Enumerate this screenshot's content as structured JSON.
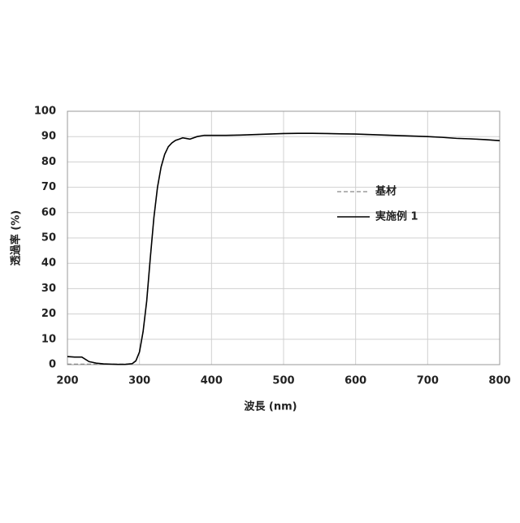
{
  "chart_data": {
    "type": "line",
    "x_label": "波長 (nm)",
    "y_label": "透過率 (%)",
    "x": [
      200,
      210,
      220,
      230,
      240,
      250,
      260,
      270,
      280,
      290,
      295,
      300,
      305,
      310,
      315,
      320,
      325,
      330,
      335,
      340,
      345,
      350,
      355,
      360,
      370,
      380,
      390,
      400,
      420,
      440,
      460,
      480,
      500,
      520,
      540,
      560,
      580,
      600,
      620,
      640,
      660,
      680,
      700,
      720,
      740,
      760,
      780,
      800
    ],
    "series": [
      {
        "name": "基材",
        "color": "#888888",
        "dash": true,
        "values": [
          0.2,
          0.2,
          0.2,
          0.2,
          0.2,
          0.2,
          0.2,
          0.2,
          0.2,
          0.4,
          1.5,
          5,
          13,
          25,
          42,
          58,
          70,
          78,
          83,
          86,
          87.5,
          88.5,
          89,
          89.5,
          89,
          90,
          90.5,
          90.5,
          90.5,
          90.6,
          90.8,
          91,
          91.2,
          91.3,
          91.3,
          91.2,
          91.1,
          91,
          90.8,
          90.6,
          90.4,
          90.2,
          90,
          89.7,
          89.3,
          89.1,
          88.8,
          88.4
        ]
      },
      {
        "name": "実施例 1",
        "color": "#000000",
        "dash": false,
        "values": [
          3.2,
          3.0,
          3.0,
          1.2,
          0.6,
          0.3,
          0.2,
          0.1,
          0.1,
          0.4,
          1.5,
          5,
          13,
          25,
          42,
          58,
          70,
          78,
          83,
          86,
          87.5,
          88.5,
          89,
          89.5,
          89,
          90,
          90.5,
          90.5,
          90.5,
          90.6,
          90.8,
          91,
          91.2,
          91.3,
          91.3,
          91.2,
          91.1,
          91,
          90.8,
          90.6,
          90.4,
          90.2,
          90,
          89.7,
          89.3,
          89.1,
          88.8,
          88.4
        ]
      }
    ],
    "xlim": [
      200,
      800
    ],
    "xticks": [
      200,
      300,
      400,
      500,
      600,
      700,
      800
    ],
    "ylim": [
      0,
      100
    ],
    "yticks": [
      0,
      10,
      20,
      30,
      40,
      50,
      60,
      70,
      80,
      90,
      100
    ],
    "grid": true
  }
}
